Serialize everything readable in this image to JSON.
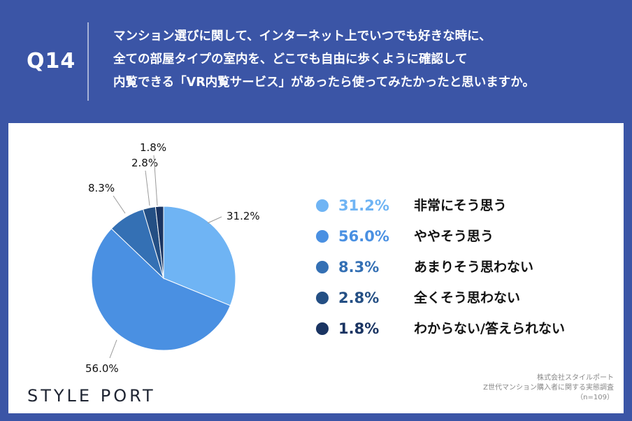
{
  "question": {
    "number": "Q14",
    "lines": [
      "マンション選びに関して、インターネット上でいつでも好きな時に、",
      "全ての部屋タイプの室内を、どこでも自由に歩くように確認して",
      "内覧できる「VR内覧サービス」があったら使ってみたかったと思いますか。"
    ]
  },
  "chart_data": {
    "type": "pie",
    "slices": [
      {
        "label": "非常にそう思う",
        "pct_text": "31.2%",
        "value": 31.2,
        "color": "#6fb4f4"
      },
      {
        "label": "ややそう思う",
        "pct_text": "56.0%",
        "value": 56.0,
        "color": "#4a90e2"
      },
      {
        "label": "あまりそう思わない",
        "pct_text": "8.3%",
        "value": 8.3,
        "color": "#3470b4"
      },
      {
        "label": "全くそう思わない",
        "pct_text": "2.8%",
        "value": 2.8,
        "color": "#244f84"
      },
      {
        "label": "わからない/答えられない",
        "pct_text": "1.8%",
        "value": 1.8,
        "color": "#1a3462"
      }
    ]
  },
  "brand": {
    "logo_text": "STYLE PORT"
  },
  "source": {
    "company": "株式会社スタイルポート",
    "survey": "Z世代マンション購入者に関する実態調査",
    "n": "（n=109）"
  }
}
